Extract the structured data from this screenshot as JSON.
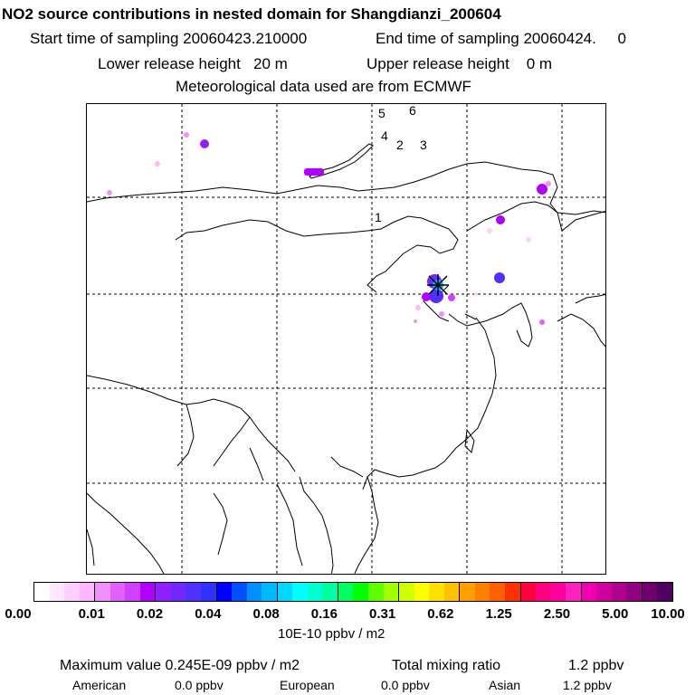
{
  "header": {
    "title": "NO2 source contributions in nested domain for Shangdianzi_200604",
    "start_label": "Start time of sampling 20060423.210000",
    "end_label": "End time of sampling 20060424.     0",
    "lower_label": "Lower release height   20 m",
    "upper_label": "Upper release height    0 m",
    "met_label": "Meteorological data used are from ECMWF"
  },
  "map": {
    "region_labels": [
      "1",
      "2",
      "3",
      "4",
      "5",
      "6"
    ],
    "marker": "receptor-star"
  },
  "colorbar": {
    "ticks": [
      "0.00",
      "0.01",
      "0.02",
      "0.04",
      "0.08",
      "0.16",
      "0.31",
      "0.62",
      "1.25",
      "2.50",
      "5.00",
      "10.00"
    ],
    "colors": [
      "#ffffff",
      "#ffe8ff",
      "#ffd0ff",
      "#ffb8ff",
      "#f090ff",
      "#e060ff",
      "#d040ff",
      "#b000ff",
      "#9020ff",
      "#7028ff",
      "#5030ff",
      "#3030ff",
      "#0000ff",
      "#0050ff",
      "#0090ff",
      "#00b8ff",
      "#00d8ff",
      "#00ffff",
      "#00ffd0",
      "#00ffa0",
      "#00ff60",
      "#00ff00",
      "#60ff00",
      "#a0ff00",
      "#d0ff00",
      "#ffff00",
      "#ffe000",
      "#ffc000",
      "#ffa000",
      "#ff8000",
      "#ff6000",
      "#ff3000",
      "#ff0040",
      "#ff0080",
      "#ff00a0",
      "#ff20c0",
      "#f000b0",
      "#d000a0",
      "#b00090",
      "#900080",
      "#700070",
      "#500060"
    ],
    "unit": "10E-10 ppbv / m2"
  },
  "footer": {
    "max_label": "Maximum value  0.245E-09 ppbv / m2",
    "total_label": "Total mixing ratio",
    "total_value": "1.2 ppbv",
    "american_label": "American",
    "american_value": "0.0 ppbv",
    "european_label": "European",
    "european_value": "0.0 ppbv",
    "asian_label": "Asian",
    "asian_value": "1.2 ppbv"
  }
}
